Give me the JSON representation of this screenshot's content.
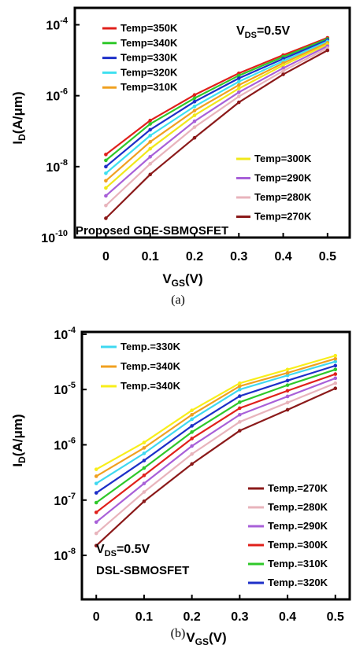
{
  "chart_data": [
    {
      "type": "line",
      "panel": "(a)",
      "xlabel_main": "V",
      "xlabel_sub": "GS",
      "xlabel_unit": "(V)",
      "ylabel_main": "I",
      "ylabel_sub": "D",
      "ylabel_unit": "(A/μm)",
      "yscale": "log",
      "ylim": [
        1e-10,
        0.0003
      ],
      "xlim": [
        -0.07,
        0.55
      ],
      "x": [
        0,
        0.1,
        0.2,
        0.3,
        0.4,
        0.5
      ],
      "x_ticks": [
        "0",
        "0.1",
        "0.2",
        "0.3",
        "0.4",
        "0.5"
      ],
      "y_ticks": [
        {
          "base": "10",
          "exp": "-4",
          "value": 0.0001
        },
        {
          "base": "10",
          "exp": "-6",
          "value": 1e-06
        },
        {
          "base": "10",
          "exp": "-8",
          "value": 1e-08
        },
        {
          "base": "10",
          "exp": "-10",
          "value": 1e-10
        }
      ],
      "annotation_vds_main": "V",
      "annotation_vds_sub": "DS",
      "annotation_vds_rest": "=0.5V",
      "annotation_device": "Proposed GDE-SBMOSFET",
      "legend_top": [
        0,
        1,
        2,
        3,
        4
      ],
      "legend_bottom": [
        5,
        6,
        7,
        8
      ],
      "series": [
        {
          "name": "Temp=350K",
          "color": "#e0201b",
          "values": [
            2.2e-08,
            2e-07,
            1.05e-06,
            4.3e-06,
            1.4e-05,
            4.3e-05
          ]
        },
        {
          "name": "Temp=340K",
          "color": "#2fc82a",
          "values": [
            1.5e-08,
            1.6e-07,
            8.5e-07,
            3.7e-06,
            1.25e-05,
            4e-05
          ]
        },
        {
          "name": "Temp=330K",
          "color": "#1d2fc8",
          "values": [
            1e-08,
            1.1e-07,
            6.8e-07,
            3.1e-06,
            1.1e-05,
            3.7e-05
          ]
        },
        {
          "name": "Temp=320K",
          "color": "#3fe0f0",
          "values": [
            6.5e-09,
            7.5e-08,
            5e-07,
            2.5e-06,
            9.5e-06,
            3.4e-05
          ]
        },
        {
          "name": "Temp=310K",
          "color": "#f0a020",
          "values": [
            4e-09,
            5e-08,
            3.8e-07,
            2e-06,
            8.3e-06,
            3.1e-05
          ]
        },
        {
          "name": "Temp=300K",
          "color": "#f0e81a",
          "values": [
            2.5e-09,
            3.2e-08,
            2.8e-07,
            1.6e-06,
            7.2e-06,
            2.8e-05
          ]
        },
        {
          "name": "Temp=290K",
          "color": "#a860d8",
          "values": [
            1.5e-09,
            1.9e-08,
            1.9e-07,
            1.25e-06,
            6e-06,
            2.5e-05
          ]
        },
        {
          "name": "Temp=280K",
          "color": "#e8b4bc",
          "values": [
            8e-10,
            1.2e-08,
            1.3e-07,
            9.5e-07,
            5e-06,
            2.2e-05
          ]
        },
        {
          "name": "Temp=270K",
          "color": "#8b1a1a",
          "values": [
            3.5e-10,
            6e-09,
            6.5e-08,
            6.5e-07,
            4e-06,
            1.9e-05
          ]
        }
      ]
    },
    {
      "type": "line",
      "panel": "(b)",
      "xlabel_main": "V",
      "xlabel_sub": "GS",
      "xlabel_unit": "(V)",
      "ylabel_main": "I",
      "ylabel_sub": "D",
      "ylabel_unit": "(A/μm)",
      "yscale": "log",
      "ylim": [
        1.6e-09,
        0.00011
      ],
      "xlim": [
        -0.03,
        0.53
      ],
      "x": [
        0,
        0.1,
        0.2,
        0.3,
        0.4,
        0.5
      ],
      "x_ticks": [
        "0",
        "0.1",
        "0.2",
        "0.3",
        "0.4",
        "0.5"
      ],
      "y_ticks": [
        {
          "base": "10",
          "exp": "-4",
          "value": 0.0001
        },
        {
          "base": "10",
          "exp": "-5",
          "value": 1e-05
        },
        {
          "base": "10",
          "exp": "-6",
          "value": 1e-06
        },
        {
          "base": "10",
          "exp": "-7",
          "value": 1e-07
        },
        {
          "base": "10",
          "exp": "-8",
          "value": 1e-08
        }
      ],
      "annotation_vds_main": "V",
      "annotation_vds_sub": "DS",
      "annotation_vds_rest": "=0.5V",
      "annotation_device": "DSL-SBMOSFET",
      "legend_top": [
        0,
        1,
        2
      ],
      "legend_bottom": [
        3,
        4,
        5,
        6,
        7,
        8
      ],
      "series": [
        {
          "name": "Temp.=330K",
          "color": "#3fd8f0",
          "values": [
            2e-07,
            7e-07,
            2.9e-06,
            1e-05,
            1.8e-05,
            3.2e-05
          ]
        },
        {
          "name": "Temp.=340K",
          "color": "#f0a020",
          "values": [
            2.7e-07,
            8.8e-07,
            3.5e-06,
            1.15e-05,
            2e-05,
            3.6e-05
          ]
        },
        {
          "name": "Temp.=340K",
          "color": "#f8ee1a",
          "values": [
            3.6e-07,
            1.1e-06,
            4.2e-06,
            1.3e-05,
            2.3e-05,
            4.1e-05
          ]
        },
        {
          "name": "Temp.=270K",
          "color": "#8b1a1a",
          "values": [
            1.5e-08,
            9.5e-08,
            4.5e-07,
            1.8e-06,
            4.3e-06,
            1.05e-05
          ]
        },
        {
          "name": "Temp.=280K",
          "color": "#e8b4bc",
          "values": [
            2.5e-08,
            1.4e-07,
            6.8e-07,
            2.6e-06,
            5.8e-06,
            1.3e-05
          ]
        },
        {
          "name": "Temp.=290K",
          "color": "#a860d8",
          "values": [
            4e-08,
            2e-07,
            9.5e-07,
            3.5e-06,
            7.5e-06,
            1.6e-05
          ]
        },
        {
          "name": "Temp.=300K",
          "color": "#e0201b",
          "values": [
            6e-08,
            2.8e-07,
            1.3e-06,
            4.6e-06,
            9.5e-06,
            1.9e-05
          ]
        },
        {
          "name": "Temp.=310K",
          "color": "#2fc82a",
          "values": [
            9e-08,
            3.8e-07,
            1.7e-06,
            5.9e-06,
            1.2e-05,
            2.3e-05
          ]
        },
        {
          "name": "Temp.=320K",
          "color": "#1d2fc8",
          "values": [
            1.35e-07,
            5.2e-07,
            2.2e-06,
            7.6e-06,
            1.45e-05,
            2.7e-05
          ]
        }
      ]
    }
  ]
}
